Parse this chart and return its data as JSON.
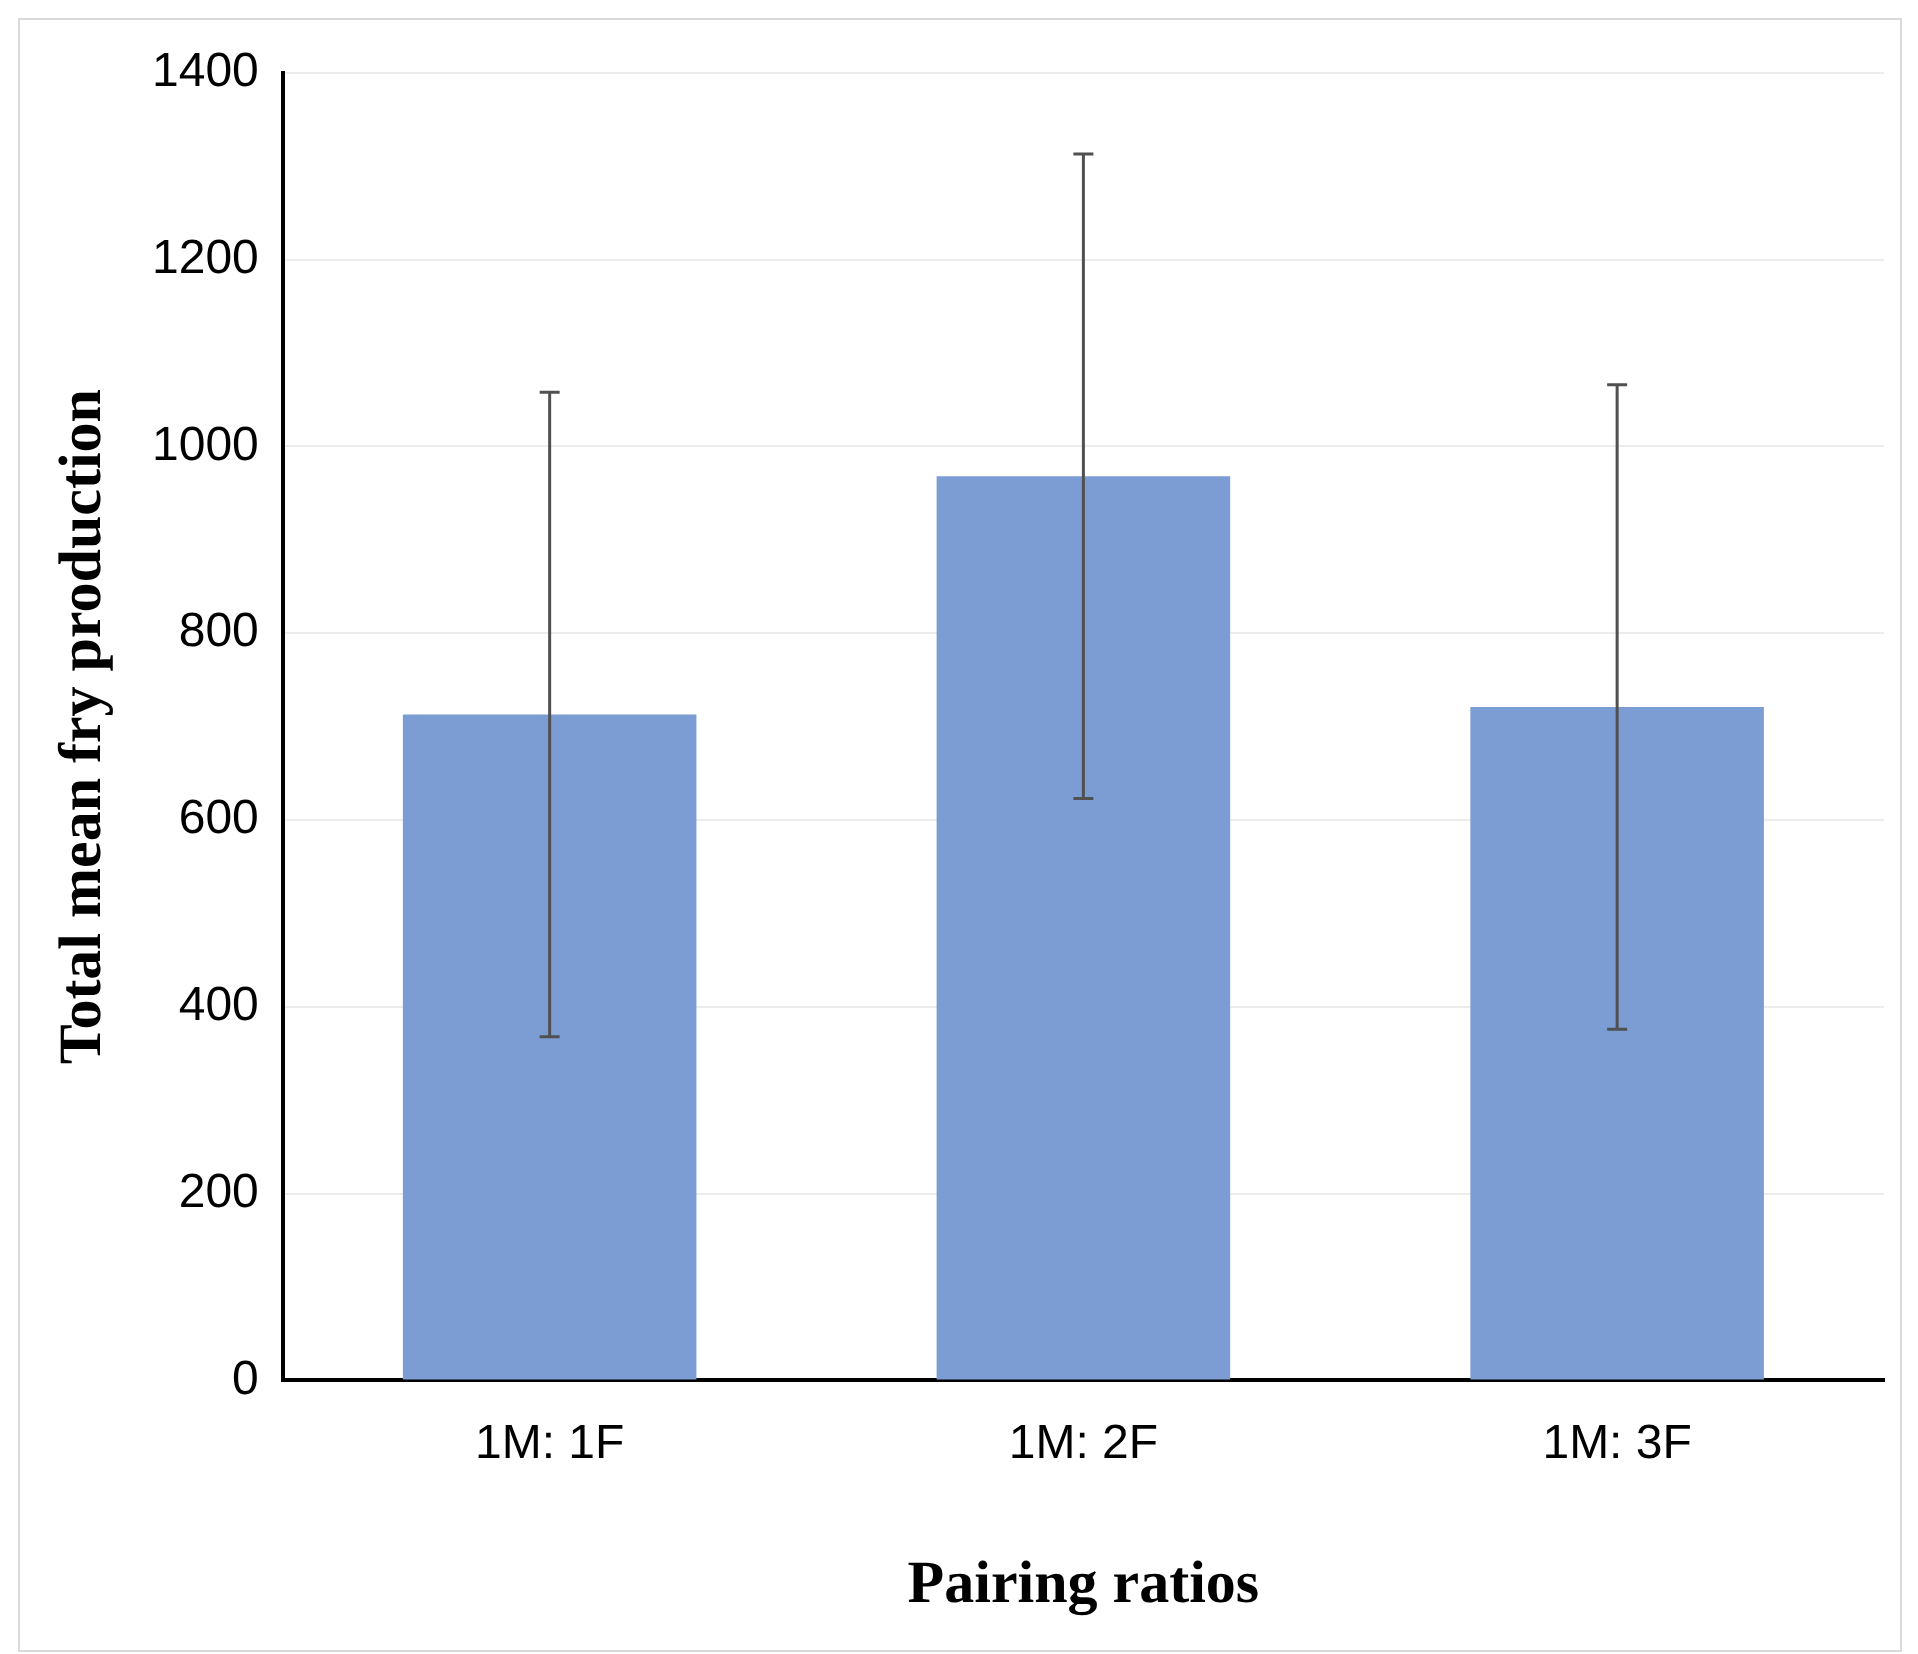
{
  "chart_data": {
    "type": "bar",
    "xlabel": "Pairing ratios",
    "ylabel": "Total mean fry production",
    "categories": [
      "1M: 1F",
      "1M: 2F",
      "1M: 3F"
    ],
    "values": [
      713,
      968,
      721
    ],
    "errors": [
      345,
      345,
      345
    ],
    "color": "#7b9dd4",
    "ylim": [
      0,
      1400
    ],
    "yticks": [
      0,
      200,
      400,
      600,
      800,
      1000,
      1200,
      1400
    ],
    "grid": "y",
    "legend": false
  }
}
